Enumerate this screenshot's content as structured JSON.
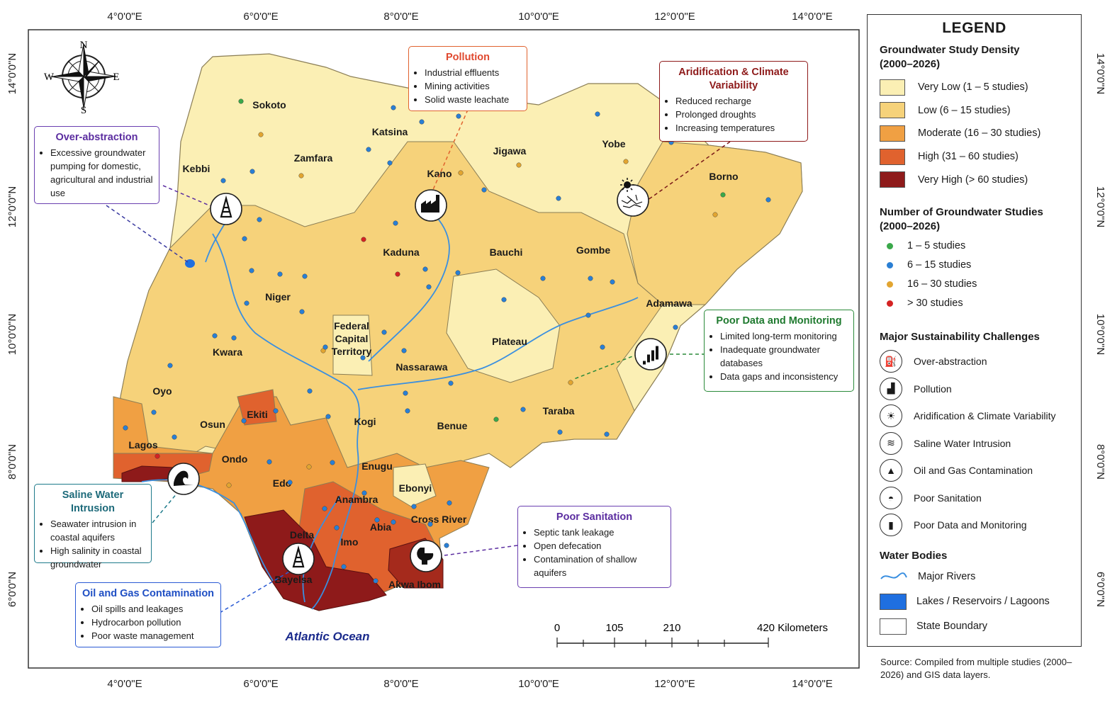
{
  "map": {
    "coord_labels": {
      "longitudes": [
        "4°0'0\"E",
        "6°0'0\"E",
        "8°0'0\"E",
        "10°0'0\"E",
        "12°0'0\"E",
        "14°0'0\"E"
      ],
      "latitudes": [
        "14°0'0\"N",
        "12°0'0\"N",
        "10°0'0\"N",
        "8°0'0\"N",
        "6°0'0\"N"
      ]
    },
    "compass": {
      "n": "N",
      "s": "S",
      "e": "E",
      "w": "W"
    },
    "ocean_label": "Atlantic Ocean",
    "states": [
      "Sokoto",
      "Katsina",
      "Kebbi",
      "Zamfara",
      "Kano",
      "Jigawa",
      "Yobe",
      "Borno",
      "Kaduna",
      "Bauchi",
      "Gombe",
      "Niger",
      "Adamawa",
      "Federal Capital Territory",
      "Plateau",
      "Kwara",
      "Nassarawa",
      "Oyo",
      "Ekiti",
      "Osun",
      "Kogi",
      "Benue",
      "Taraba",
      "Lagos",
      "Ondo",
      "Enugu",
      "Edo",
      "Ebonyi",
      "Anambra",
      "Cross River",
      "Abia",
      "Delta",
      "Imo",
      "Bayelsa",
      "Akwa Ibom"
    ],
    "scale_bar": {
      "ticks": [
        "0",
        "105",
        "210",
        "420 Kilometers"
      ]
    }
  },
  "callouts": {
    "over_abstraction": {
      "title": "Over-abstraction",
      "items": [
        "Excessive groundwater pumping for domestic, agricultural and industrial use"
      ]
    },
    "pollution": {
      "title": "Pollution",
      "items": [
        "Industrial effluents",
        "Mining activities",
        "Solid waste leachate"
      ]
    },
    "aridification": {
      "title": "Aridification & Climate Variability",
      "items": [
        "Reduced recharge",
        "Prolonged droughts",
        "Increasing temperatures"
      ]
    },
    "poor_data": {
      "title": "Poor Data and Monitoring",
      "items": [
        "Limited long-term monitoring",
        "Inadequate groundwater databases",
        "Data gaps and inconsistency"
      ]
    },
    "saline": {
      "title": "Saline Water Intrusion",
      "items": [
        "Seawater intrusion in coastal aquifers",
        "High salinity in coastal groundwater"
      ]
    },
    "oil_gas": {
      "title": "Oil and Gas Contamination",
      "items": [
        "Oil spills and leakages",
        "Hydrocarbon pollution",
        "Poor waste management"
      ]
    },
    "sanitation": {
      "title": "Poor Sanitation",
      "items": [
        "Septic tank leakage",
        "Open defecation",
        "Contamination of shallow aquifers"
      ]
    }
  },
  "legend": {
    "title": "LEGEND",
    "density_title": "Groundwater Study Density (2000–2026)",
    "density": [
      {
        "label": "Very Low (1 – 5 studies)",
        "color": "#fbefb4"
      },
      {
        "label": "Low (6 – 15 studies)",
        "color": "#f6d27a"
      },
      {
        "label": "Moderate (16 – 30 studies)",
        "color": "#f0a043"
      },
      {
        "label": "High (31 – 60 studies)",
        "color": "#e0622e"
      },
      {
        "label": "Very High (> 60 studies)",
        "color": "#8e1a1a"
      }
    ],
    "count_title": "Number of Groundwater Studies (2000–2026)",
    "counts": [
      {
        "label": "1 – 5 studies",
        "color": "#3aa84a"
      },
      {
        "label": "6 – 15 studies",
        "color": "#2a7fd4"
      },
      {
        "label": "16 – 30 studies",
        "color": "#e2a531"
      },
      {
        "label": "> 30 studies",
        "color": "#d42323"
      }
    ],
    "challenges_title": "Major Sustainability Challenges",
    "challenges": [
      {
        "label": "Over-abstraction",
        "icon": "pump-icon"
      },
      {
        "label": "Pollution",
        "icon": "factory-icon"
      },
      {
        "label": "Aridification & Climate Variability",
        "icon": "sun-cracked-earth-icon"
      },
      {
        "label": "Saline Water Intrusion",
        "icon": "wave-icon"
      },
      {
        "label": "Oil and Gas Contamination",
        "icon": "oil-rig-icon"
      },
      {
        "label": "Poor Sanitation",
        "icon": "toilet-icon"
      },
      {
        "label": "Poor Data and Monitoring",
        "icon": "bar-chart-icon"
      }
    ],
    "water_title": "Water Bodies",
    "water": [
      {
        "label": "Major Rivers",
        "color": "#3a8fe0"
      },
      {
        "label": "Lakes / Reservoirs / Lagoons",
        "color": "#1f6fe0"
      },
      {
        "label": "State Boundary",
        "color": "#ffffff"
      }
    ]
  },
  "source": "Source: Compiled from multiple studies (2000–2026) and GIS data layers."
}
